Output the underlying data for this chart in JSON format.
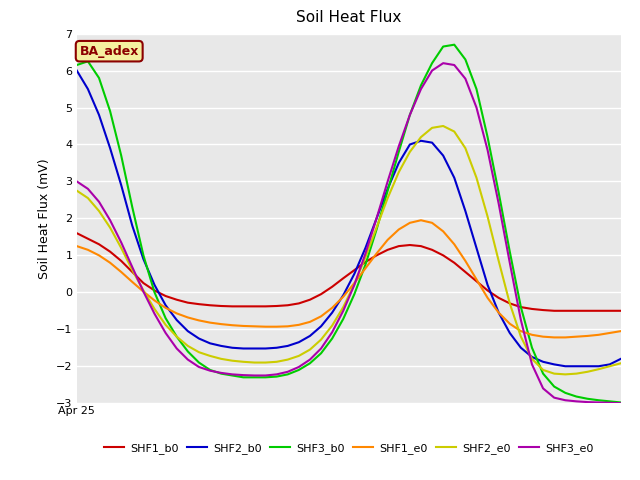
{
  "title": "Soil Heat Flux",
  "ylabel": "Soil Heat Flux (mV)",
  "xlabel": "Apr 25",
  "ylim": [
    -3.0,
    7.0
  ],
  "yticks": [
    -3.0,
    -2.0,
    -1.0,
    0.0,
    1.0,
    2.0,
    3.0,
    4.0,
    5.0,
    6.0,
    7.0
  ],
  "background_color": "#e8e8e8",
  "annotation": "BA_adex",
  "annotation_bg": "#f5f0a0",
  "annotation_border": "#8B0000",
  "annotation_text_color": "#8B0000",
  "series": [
    {
      "name": "SHF1_b0",
      "color": "#cc0000",
      "values": [
        1.6,
        1.45,
        1.3,
        1.1,
        0.85,
        0.55,
        0.25,
        0.05,
        -0.1,
        -0.2,
        -0.28,
        -0.32,
        -0.35,
        -0.37,
        -0.38,
        -0.38,
        -0.38,
        -0.38,
        -0.37,
        -0.35,
        -0.3,
        -0.2,
        -0.05,
        0.15,
        0.38,
        0.6,
        0.82,
        1.0,
        1.15,
        1.25,
        1.28,
        1.25,
        1.15,
        1.0,
        0.8,
        0.55,
        0.3,
        0.05,
        -0.15,
        -0.3,
        -0.4,
        -0.45,
        -0.48,
        -0.5,
        -0.5,
        -0.5,
        -0.5,
        -0.5,
        -0.5,
        -0.5
      ]
    },
    {
      "name": "SHF2_b0",
      "color": "#0000cc",
      "values": [
        6.0,
        5.5,
        4.8,
        3.9,
        2.9,
        1.8,
        0.9,
        0.2,
        -0.35,
        -0.75,
        -1.05,
        -1.25,
        -1.38,
        -1.45,
        -1.5,
        -1.52,
        -1.52,
        -1.52,
        -1.5,
        -1.45,
        -1.35,
        -1.18,
        -0.92,
        -0.55,
        -0.08,
        0.5,
        1.2,
        2.0,
        2.8,
        3.5,
        4.0,
        4.1,
        4.05,
        3.7,
        3.1,
        2.2,
        1.2,
        0.2,
        -0.55,
        -1.1,
        -1.5,
        -1.75,
        -1.88,
        -1.95,
        -2.0,
        -2.0,
        -2.0,
        -2.0,
        -1.95,
        -1.8
      ]
    },
    {
      "name": "SHF3_b0",
      "color": "#00cc00",
      "values": [
        6.15,
        6.25,
        5.8,
        4.9,
        3.7,
        2.3,
        1.0,
        0.0,
        -0.7,
        -1.2,
        -1.6,
        -1.9,
        -2.1,
        -2.2,
        -2.25,
        -2.3,
        -2.3,
        -2.3,
        -2.28,
        -2.22,
        -2.1,
        -1.92,
        -1.65,
        -1.25,
        -0.72,
        -0.05,
        0.75,
        1.7,
        2.75,
        3.8,
        4.8,
        5.6,
        6.2,
        6.65,
        6.7,
        6.3,
        5.5,
        4.2,
        2.7,
        1.1,
        -0.4,
        -1.5,
        -2.2,
        -2.55,
        -2.72,
        -2.82,
        -2.88,
        -2.92,
        -2.95,
        -2.98
      ]
    },
    {
      "name": "SHF1_e0",
      "color": "#ff8800",
      "values": [
        1.25,
        1.15,
        1.0,
        0.8,
        0.55,
        0.28,
        0.02,
        -0.22,
        -0.42,
        -0.57,
        -0.68,
        -0.76,
        -0.82,
        -0.86,
        -0.89,
        -0.91,
        -0.92,
        -0.93,
        -0.93,
        -0.92,
        -0.88,
        -0.8,
        -0.65,
        -0.42,
        -0.12,
        0.25,
        0.65,
        1.05,
        1.42,
        1.7,
        1.88,
        1.95,
        1.88,
        1.65,
        1.3,
        0.85,
        0.35,
        -0.15,
        -0.55,
        -0.85,
        -1.05,
        -1.15,
        -1.2,
        -1.22,
        -1.22,
        -1.2,
        -1.18,
        -1.15,
        -1.1,
        -1.05
      ]
    },
    {
      "name": "SHF2_e0",
      "color": "#cccc00",
      "values": [
        2.75,
        2.55,
        2.2,
        1.75,
        1.2,
        0.6,
        0.05,
        -0.45,
        -0.88,
        -1.2,
        -1.45,
        -1.62,
        -1.72,
        -1.8,
        -1.85,
        -1.88,
        -1.9,
        -1.9,
        -1.88,
        -1.82,
        -1.72,
        -1.55,
        -1.28,
        -0.9,
        -0.4,
        0.22,
        0.95,
        1.75,
        2.55,
        3.25,
        3.8,
        4.2,
        4.45,
        4.5,
        4.35,
        3.9,
        3.1,
        2.05,
        0.85,
        -0.3,
        -1.2,
        -1.8,
        -2.1,
        -2.2,
        -2.22,
        -2.2,
        -2.15,
        -2.08,
        -2.0,
        -1.92
      ]
    },
    {
      "name": "SHF3_e0",
      "color": "#aa00aa",
      "values": [
        3.0,
        2.8,
        2.45,
        1.95,
        1.35,
        0.68,
        0.02,
        -0.58,
        -1.1,
        -1.52,
        -1.82,
        -2.02,
        -2.12,
        -2.18,
        -2.22,
        -2.24,
        -2.25,
        -2.25,
        -2.22,
        -2.15,
        -2.02,
        -1.82,
        -1.52,
        -1.08,
        -0.5,
        0.2,
        1.05,
        2.0,
        3.0,
        3.95,
        4.8,
        5.5,
        6.0,
        6.2,
        6.15,
        5.78,
        5.0,
        3.85,
        2.4,
        0.8,
        -0.75,
        -1.95,
        -2.6,
        -2.85,
        -2.92,
        -2.95,
        -2.97,
        -2.98,
        -2.99,
        -3.0
      ]
    }
  ]
}
